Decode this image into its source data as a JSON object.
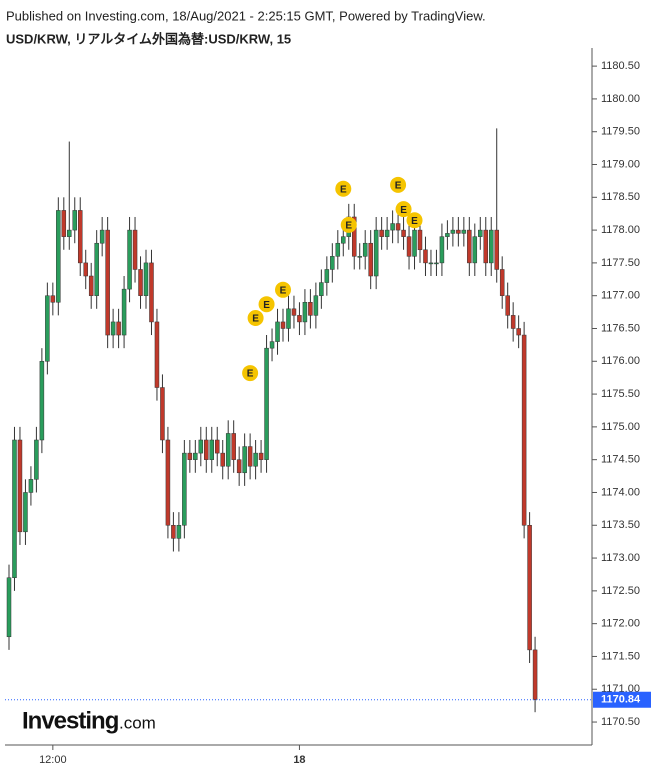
{
  "header": {
    "published": "Published on Investing.com, 18/Aug/2021 - 2:25:15 GMT, Powered by TradingView.",
    "symbol": "USD/KRW, リアルタイム外国為替:USD/KRW, 15"
  },
  "logo": {
    "brand": "Investing",
    "suffix": ".com"
  },
  "chart_data": {
    "type": "candlestick",
    "up_color": "#2a9d5c",
    "down_color": "#c0392b",
    "categories": [
      null,
      null,
      null,
      null,
      null,
      null,
      null,
      null,
      "12:00",
      null,
      null,
      null,
      null,
      null,
      null,
      null,
      null,
      null,
      null,
      null,
      null,
      null,
      null,
      null,
      null,
      null,
      null,
      null,
      null,
      null,
      null,
      null,
      null,
      null,
      null,
      null,
      null,
      null,
      null,
      null,
      null,
      null,
      null,
      null,
      null,
      null,
      null,
      null,
      null,
      null,
      null,
      null,
      null,
      "18",
      null,
      null,
      null,
      null,
      null,
      null,
      null,
      null,
      null,
      null,
      null,
      null,
      null,
      null,
      null,
      null,
      null,
      null,
      null,
      null,
      null,
      null,
      null,
      null,
      null,
      null,
      null,
      null,
      null,
      null,
      null,
      null,
      null,
      null,
      null,
      null,
      null,
      null,
      null,
      null,
      null,
      null,
      null
    ],
    "open": [
      1171.8,
      1172.7,
      1174.8,
      1173.4,
      1174.0,
      1174.2,
      1174.8,
      1176.0,
      1177.0,
      1176.9,
      1178.3,
      1177.9,
      1178.0,
      1178.3,
      1177.5,
      1177.3,
      1177.0,
      1177.8,
      1178.0,
      1176.4,
      1176.6,
      1176.4,
      1177.1,
      1178.0,
      1177.4,
      1177.0,
      1177.5,
      1176.6,
      1175.6,
      1174.8,
      1173.5,
      1173.3,
      1173.5,
      1174.6,
      1174.5,
      1174.6,
      1174.8,
      1174.5,
      1174.8,
      1174.6,
      1174.4,
      1174.9,
      1174.5,
      1174.3,
      1174.7,
      1174.4,
      1174.6,
      1174.5,
      1176.2,
      1176.3,
      1176.6,
      1176.5,
      1176.8,
      1176.7,
      1176.6,
      1176.9,
      1176.7,
      1177.0,
      1177.2,
      1177.4,
      1177.6,
      1177.8,
      1177.9,
      1178.2,
      1177.6,
      1177.6,
      1177.8,
      1177.3,
      1178.0,
      1177.9,
      1178.0,
      1178.1,
      1178.0,
      1177.9,
      1177.6,
      1178.0,
      1177.7,
      1177.5,
      1177.5,
      1177.5,
      1177.9,
      1177.95,
      1178.0,
      1177.95,
      1178.0,
      1177.5,
      1177.9,
      1178.0,
      1177.5,
      1178.0,
      1177.4,
      1177.0,
      1176.7,
      1176.5,
      1176.4,
      1173.5,
      1171.6
    ],
    "high": [
      1172.9,
      1175.0,
      1175.0,
      1174.2,
      1174.4,
      1175.0,
      1176.2,
      1177.2,
      1177.2,
      1178.5,
      1178.5,
      1179.35,
      1178.5,
      1178.5,
      1177.7,
      1177.5,
      1178.0,
      1178.2,
      1178.2,
      1176.8,
      1176.8,
      1177.3,
      1178.2,
      1178.2,
      1177.6,
      1177.7,
      1177.7,
      1176.8,
      1175.8,
      1175.0,
      1173.7,
      1173.7,
      1174.8,
      1174.8,
      1174.8,
      1175.0,
      1175.0,
      1175.0,
      1175.0,
      1174.8,
      1175.1,
      1175.1,
      1174.7,
      1174.9,
      1174.9,
      1174.8,
      1174.8,
      1176.4,
      1176.5,
      1176.8,
      1176.8,
      1177.0,
      1177.0,
      1176.9,
      1177.1,
      1177.1,
      1177.2,
      1177.4,
      1177.6,
      1177.8,
      1178.0,
      1178.1,
      1178.4,
      1178.4,
      1177.8,
      1178.0,
      1178.0,
      1178.2,
      1178.2,
      1178.2,
      1178.3,
      1178.3,
      1178.2,
      1178.1,
      1178.2,
      1178.2,
      1177.9,
      1177.7,
      1177.7,
      1178.1,
      1178.15,
      1178.2,
      1178.2,
      1178.2,
      1178.2,
      1178.1,
      1178.2,
      1178.2,
      1178.2,
      1179.55,
      1177.6,
      1177.2,
      1176.9,
      1176.7,
      1176.6,
      1173.7,
      1171.8
    ],
    "low": [
      1171.6,
      1172.5,
      1173.2,
      1173.2,
      1173.8,
      1174.0,
      1174.6,
      1175.8,
      1176.7,
      1176.7,
      1177.7,
      1177.7,
      1177.8,
      1177.3,
      1177.1,
      1176.8,
      1176.8,
      1177.6,
      1176.2,
      1176.2,
      1176.2,
      1176.2,
      1176.9,
      1177.2,
      1176.8,
      1176.8,
      1176.4,
      1175.4,
      1174.6,
      1173.3,
      1173.1,
      1173.1,
      1173.3,
      1174.3,
      1174.3,
      1174.4,
      1174.3,
      1174.3,
      1174.4,
      1174.2,
      1174.2,
      1174.3,
      1174.1,
      1174.1,
      1174.2,
      1174.2,
      1174.3,
      1174.3,
      1176.0,
      1176.1,
      1176.3,
      1176.3,
      1176.5,
      1176.4,
      1176.4,
      1176.5,
      1176.5,
      1176.8,
      1177.0,
      1177.2,
      1177.4,
      1177.6,
      1177.7,
      1177.4,
      1177.4,
      1177.4,
      1177.1,
      1177.1,
      1177.7,
      1177.7,
      1177.8,
      1177.8,
      1177.7,
      1177.4,
      1177.4,
      1177.5,
      1177.3,
      1177.3,
      1177.3,
      1177.3,
      1177.7,
      1177.75,
      1177.75,
      1177.75,
      1177.3,
      1177.3,
      1177.7,
      1177.3,
      1177.3,
      1177.2,
      1176.8,
      1176.5,
      1176.3,
      1176.2,
      1173.3,
      1171.4,
      1170.65
    ],
    "close": [
      1172.7,
      1174.8,
      1173.4,
      1174.0,
      1174.2,
      1174.8,
      1176.0,
      1177.0,
      1176.9,
      1178.3,
      1177.9,
      1178.0,
      1178.3,
      1177.5,
      1177.3,
      1177.0,
      1177.8,
      1178.0,
      1176.4,
      1176.6,
      1176.4,
      1177.1,
      1178.0,
      1177.4,
      1177.0,
      1177.5,
      1176.6,
      1175.6,
      1174.8,
      1173.5,
      1173.3,
      1173.5,
      1174.6,
      1174.5,
      1174.6,
      1174.8,
      1174.5,
      1174.8,
      1174.6,
      1174.4,
      1174.9,
      1174.5,
      1174.3,
      1174.7,
      1174.4,
      1174.6,
      1174.5,
      1176.2,
      1176.3,
      1176.6,
      1176.5,
      1176.8,
      1176.7,
      1176.6,
      1176.9,
      1176.7,
      1177.0,
      1177.2,
      1177.4,
      1177.6,
      1177.8,
      1177.9,
      1178.2,
      1177.6,
      1177.6,
      1177.8,
      1177.3,
      1178.0,
      1177.9,
      1178.0,
      1178.1,
      1178.0,
      1177.9,
      1177.6,
      1178.0,
      1177.7,
      1177.5,
      1177.5,
      1177.5,
      1177.9,
      1177.95,
      1178.0,
      1177.95,
      1178.0,
      1177.5,
      1177.9,
      1178.0,
      1177.5,
      1178.0,
      1177.4,
      1177.0,
      1176.7,
      1176.5,
      1176.4,
      1173.5,
      1171.6,
      1170.84
    ],
    "events": [
      {
        "text": "E",
        "at": 44,
        "price": 1175.82
      },
      {
        "text": "E",
        "at": 45,
        "price": 1176.66
      },
      {
        "text": "E",
        "at": 47,
        "price": 1176.87
      },
      {
        "text": "E",
        "at": 50,
        "price": 1177.09
      },
      {
        "text": "E",
        "at": 61,
        "price": 1178.63
      },
      {
        "text": "E",
        "at": 62,
        "price": 1178.08
      },
      {
        "text": "E",
        "at": 71,
        "price": 1178.69
      },
      {
        "text": "E",
        "at": 72,
        "price": 1178.32
      },
      {
        "text": "E",
        "at": 74,
        "price": 1178.15
      }
    ],
    "last_price": {
      "value": 1170.84,
      "label": "1170.84"
    },
    "last_color": "#2962ff",
    "ylim": [
      1170.15,
      1180.7
    ],
    "yticks": [
      {
        "value": 1170.5,
        "label": "1170.50"
      },
      {
        "value": 1171,
        "label": "1171.00"
      },
      {
        "value": 1171.5,
        "label": "1171.50"
      },
      {
        "value": 1172,
        "label": "1172.00"
      },
      {
        "value": 1172.5,
        "label": "1172.50"
      },
      {
        "value": 1173,
        "label": "1173.00"
      },
      {
        "value": 1173.5,
        "label": "1173.50"
      },
      {
        "value": 1174,
        "label": "1174.00"
      },
      {
        "value": 1174.5,
        "label": "1174.50"
      },
      {
        "value": 1175,
        "label": "1175.00"
      },
      {
        "value": 1175.5,
        "label": "1175.50"
      },
      {
        "value": 1176,
        "label": "1176.00"
      },
      {
        "value": 1176.5,
        "label": "1176.50"
      },
      {
        "value": 1177,
        "label": "1177.00"
      },
      {
        "value": 1177.5,
        "label": "1177.50"
      },
      {
        "value": 1178,
        "label": "1178.00"
      },
      {
        "value": 1178.5,
        "label": "1178.50"
      },
      {
        "value": 1179,
        "label": "1179.00"
      },
      {
        "value": 1179.5,
        "label": "1179.50"
      },
      {
        "value": 1180,
        "label": "1180.00"
      },
      {
        "value": 1180.5,
        "label": "1180.50"
      }
    ]
  }
}
